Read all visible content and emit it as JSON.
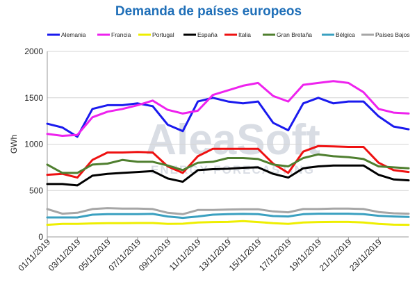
{
  "chart_data": {
    "type": "line",
    "title": "Demanda de países europeos",
    "ylabel": "GWh",
    "xlabel": "",
    "ylim": [
      0,
      2000
    ],
    "yticks": [
      0,
      500,
      1000,
      1500,
      2000
    ],
    "grid": "horizontal",
    "legend_position": "top",
    "watermark": {
      "brand": "AleaSoft",
      "tagline": "ENERGY FORECASTING"
    },
    "x": [
      "01/11/2019",
      "02/11/2019",
      "03/11/2019",
      "04/11/2019",
      "05/11/2019",
      "06/11/2019",
      "07/11/2019",
      "08/11/2019",
      "09/11/2019",
      "10/11/2019",
      "11/11/2019",
      "12/11/2019",
      "13/11/2019",
      "14/11/2019",
      "15/11/2019",
      "16/11/2019",
      "17/11/2019",
      "18/11/2019",
      "19/11/2019",
      "20/11/2019",
      "21/11/2019",
      "22/11/2019",
      "23/11/2019",
      "24/11/2019",
      "25/11/2019"
    ],
    "xtick_labels": [
      "01/11/2019",
      "03/11/2019",
      "05/11/2019",
      "07/11/2019",
      "09/11/2019",
      "11/11/2019",
      "13/11/2019",
      "15/11/2019",
      "17/11/2019",
      "19/11/2019",
      "21/11/2019",
      "23/11/2019"
    ],
    "series": [
      {
        "name": "Alemania",
        "color": "#1a1aee",
        "values": [
          1220,
          1180,
          1080,
          1380,
          1420,
          1420,
          1440,
          1410,
          1210,
          1140,
          1460,
          1500,
          1460,
          1440,
          1460,
          1230,
          1150,
          1440,
          1500,
          1440,
          1460,
          1460,
          1300,
          1190,
          1160
        ]
      },
      {
        "name": "Francia",
        "color": "#ee22ee",
        "values": [
          1110,
          1090,
          1100,
          1290,
          1350,
          1380,
          1420,
          1470,
          1370,
          1330,
          1360,
          1530,
          1580,
          1630,
          1660,
          1520,
          1460,
          1640,
          1660,
          1680,
          1660,
          1560,
          1380,
          1340,
          1330
        ]
      },
      {
        "name": "Portugal",
        "color": "#eeee00",
        "values": [
          130,
          140,
          140,
          145,
          148,
          148,
          150,
          150,
          140,
          142,
          155,
          160,
          162,
          170,
          160,
          148,
          140,
          155,
          160,
          162,
          162,
          155,
          140,
          132,
          130
        ]
      },
      {
        "name": "España",
        "color": "#000000",
        "values": [
          570,
          570,
          555,
          660,
          680,
          690,
          700,
          710,
          630,
          595,
          720,
          730,
          735,
          745,
          750,
          680,
          640,
          740,
          760,
          770,
          770,
          770,
          670,
          620,
          610
        ]
      },
      {
        "name": "Italia",
        "color": "#ee1111",
        "values": [
          670,
          680,
          640,
          830,
          910,
          910,
          915,
          910,
          760,
          690,
          870,
          950,
          950,
          950,
          950,
          790,
          690,
          920,
          980,
          975,
          970,
          970,
          800,
          720,
          700
        ]
      },
      {
        "name": "Gran Bretaña",
        "color": "#4f7f2f",
        "values": [
          780,
          690,
          690,
          780,
          790,
          830,
          810,
          810,
          770,
          720,
          800,
          810,
          850,
          850,
          840,
          780,
          760,
          850,
          890,
          870,
          860,
          840,
          760,
          750,
          740
        ]
      },
      {
        "name": "Bélgica",
        "color": "#3aa0c0",
        "values": [
          210,
          210,
          210,
          240,
          245,
          245,
          245,
          248,
          220,
          205,
          220,
          240,
          245,
          248,
          245,
          225,
          220,
          245,
          250,
          250,
          250,
          245,
          228,
          220,
          215
        ]
      },
      {
        "name": "Países Bajos",
        "color": "#a6a6a6",
        "values": [
          300,
          250,
          260,
          300,
          310,
          305,
          305,
          300,
          260,
          245,
          290,
          290,
          295,
          298,
          298,
          275,
          265,
          300,
          300,
          305,
          305,
          300,
          268,
          255,
          250
        ]
      }
    ]
  }
}
